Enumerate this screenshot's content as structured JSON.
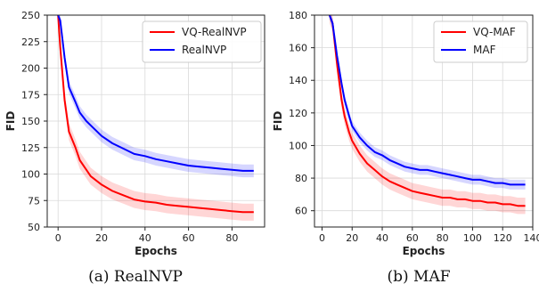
{
  "chart_data": [
    {
      "type": "line",
      "caption": "(a) RealNVP",
      "xlabel": "Epochs",
      "ylabel": "FID",
      "xlim": [
        -5,
        95
      ],
      "ylim": [
        50,
        250
      ],
      "xticks": [
        "0",
        "20",
        "40",
        "60",
        "80"
      ],
      "yticks": [
        "50",
        "75",
        "100",
        "125",
        "150",
        "175",
        "200",
        "225",
        "250"
      ],
      "grid": true,
      "legend_position": "top-right",
      "series": [
        {
          "name": "VQ-RealNVP",
          "color": "#ff0000",
          "band": 8,
          "x": [
            0,
            1,
            3,
            5,
            8,
            10,
            13,
            15,
            20,
            25,
            30,
            35,
            40,
            45,
            50,
            55,
            60,
            65,
            70,
            75,
            80,
            85,
            90
          ],
          "values": [
            250,
            220,
            170,
            140,
            125,
            113,
            104,
            98,
            90,
            84,
            80,
            76,
            74,
            73,
            71,
            70,
            69,
            68,
            67,
            66,
            65,
            64,
            64
          ]
        },
        {
          "name": "RealNVP",
          "color": "#0000ff",
          "band": 6,
          "x": [
            0,
            1,
            3,
            5,
            8,
            10,
            13,
            15,
            20,
            25,
            30,
            35,
            40,
            45,
            50,
            55,
            60,
            65,
            70,
            75,
            80,
            85,
            90
          ],
          "values": [
            250,
            245,
            210,
            182,
            168,
            158,
            150,
            146,
            136,
            129,
            124,
            119,
            117,
            114,
            112,
            110,
            108,
            107,
            106,
            105,
            104,
            103,
            103
          ]
        }
      ]
    },
    {
      "type": "line",
      "caption": "(b) MAF",
      "xlabel": "Epochs",
      "ylabel": "FID",
      "xlim": [
        -5,
        140
      ],
      "ylim": [
        50,
        180
      ],
      "xticks": [
        "0",
        "20",
        "40",
        "60",
        "80",
        "100",
        "120",
        "140"
      ],
      "yticks": [
        "60",
        "80",
        "100",
        "120",
        "140",
        "160",
        "180"
      ],
      "grid": true,
      "legend_position": "top-right",
      "series": [
        {
          "name": "VQ-MAF",
          "color": "#ff0000",
          "band": 5,
          "x": [
            5,
            7,
            10,
            13,
            15,
            18,
            20,
            25,
            30,
            35,
            40,
            45,
            50,
            55,
            60,
            65,
            70,
            75,
            80,
            85,
            90,
            95,
            100,
            105,
            110,
            115,
            120,
            125,
            130,
            135
          ],
          "values": [
            180,
            175,
            150,
            128,
            118,
            108,
            103,
            95,
            89,
            85,
            81,
            78,
            76,
            74,
            72,
            71,
            70,
            69,
            68,
            68,
            67,
            67,
            66,
            66,
            65,
            65,
            64,
            64,
            63,
            63
          ]
        },
        {
          "name": "MAF",
          "color": "#0000ff",
          "band": 3,
          "x": [
            5,
            7,
            10,
            13,
            15,
            18,
            20,
            25,
            30,
            35,
            40,
            45,
            50,
            55,
            60,
            65,
            70,
            75,
            80,
            85,
            90,
            95,
            100,
            105,
            110,
            115,
            120,
            125,
            130,
            135
          ],
          "values": [
            180,
            175,
            155,
            138,
            128,
            118,
            112,
            105,
            100,
            96,
            94,
            91,
            89,
            87,
            86,
            85,
            85,
            84,
            83,
            82,
            81,
            80,
            79,
            79,
            78,
            77,
            77,
            76,
            76,
            76
          ]
        }
      ]
    }
  ]
}
